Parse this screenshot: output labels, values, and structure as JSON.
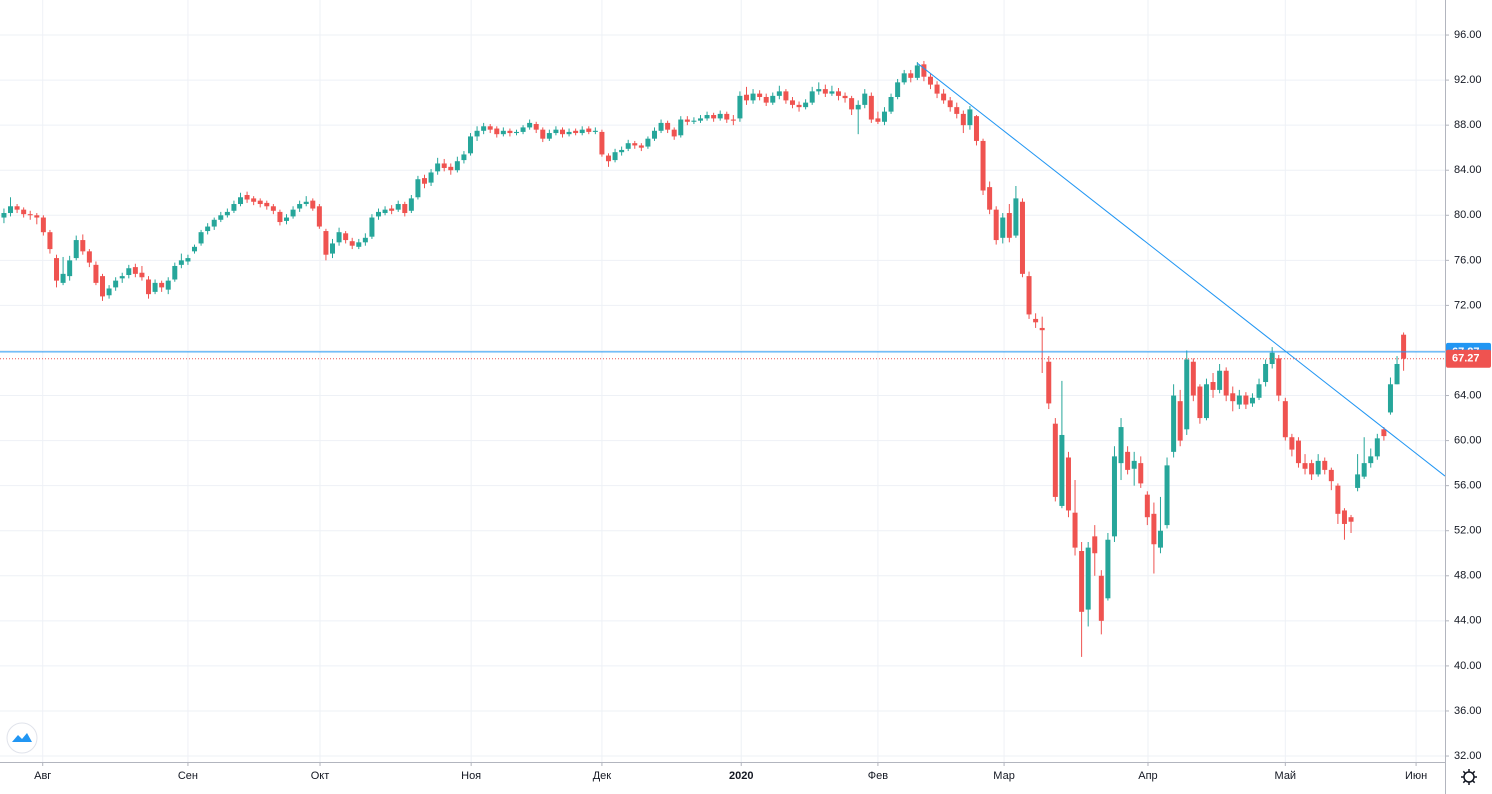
{
  "chart_data": {
    "type": "candlestick",
    "xlim": [
      -0.6,
      219.3
    ],
    "ylim": [
      31.47,
      99.11
    ],
    "grid": true,
    "xticks": [
      {
        "value": 5.9,
        "label": "Авг"
      },
      {
        "value": 28.0,
        "label": "Сен"
      },
      {
        "value": 48.1,
        "label": "Окт"
      },
      {
        "value": 71.1,
        "label": "Ноя"
      },
      {
        "value": 91.0,
        "label": "Дек"
      },
      {
        "value": 112.2,
        "label": "2020"
      },
      {
        "value": 133.0,
        "label": "Фев"
      },
      {
        "value": 152.2,
        "label": "Мар"
      },
      {
        "value": 174.1,
        "label": "Апр"
      },
      {
        "value": 195.0,
        "label": "Май"
      },
      {
        "value": 214.9,
        "label": "Июн"
      }
    ],
    "yticks": [
      {
        "value": 32,
        "label": "32.00"
      },
      {
        "value": 36,
        "label": "36.00"
      },
      {
        "value": 40,
        "label": "40.00"
      },
      {
        "value": 44,
        "label": "44.00"
      },
      {
        "value": 48,
        "label": "48.00"
      },
      {
        "value": 52,
        "label": "52.00"
      },
      {
        "value": 56,
        "label": "56.00"
      },
      {
        "value": 60,
        "label": "60.00"
      },
      {
        "value": 64,
        "label": "64.00"
      },
      {
        "value": 68,
        "label": "68.00"
      },
      {
        "value": 72,
        "label": "72.00"
      },
      {
        "value": 76,
        "label": "76.00"
      },
      {
        "value": 80,
        "label": "80.00"
      },
      {
        "value": 84,
        "label": "84.00"
      },
      {
        "value": 88,
        "label": "88.00"
      },
      {
        "value": 92,
        "label": "92.00"
      },
      {
        "value": 96,
        "label": "96.00"
      }
    ],
    "up_color": "#26a69a",
    "down_color": "#ef5350",
    "x": [
      0,
      1,
      2,
      3,
      4,
      5,
      6,
      7,
      8,
      9,
      10,
      11,
      12,
      13,
      14,
      15,
      16,
      17,
      18,
      19,
      20,
      21,
      22,
      23,
      24,
      25,
      26,
      27,
      28,
      29,
      30,
      31,
      32,
      33,
      34,
      35,
      36,
      37,
      38,
      39,
      40,
      41,
      42,
      43,
      44,
      45,
      46,
      47,
      48,
      49,
      50,
      51,
      52,
      53,
      54,
      55,
      56,
      57,
      58,
      59,
      60,
      61,
      62,
      63,
      64,
      65,
      66,
      67,
      68,
      69,
      70,
      71,
      72,
      73,
      74,
      75,
      76,
      77,
      78,
      79,
      80,
      81,
      82,
      83,
      84,
      85,
      86,
      87,
      88,
      89,
      90,
      91,
      92,
      93,
      94,
      95,
      96,
      97,
      98,
      99,
      100,
      101,
      102,
      103,
      104,
      105,
      106,
      107,
      108,
      109,
      110,
      111,
      112,
      113,
      114,
      115,
      116,
      117,
      118,
      119,
      120,
      121,
      122,
      123,
      124,
      125,
      126,
      127,
      128,
      129,
      130,
      131,
      132,
      133,
      134,
      135,
      136,
      137,
      138,
      139,
      140,
      141,
      142,
      143,
      144,
      145,
      146,
      147,
      148,
      149,
      150,
      151,
      152,
      153,
      154,
      155,
      156,
      157,
      158,
      159,
      160,
      161,
      162,
      163,
      164,
      165,
      166,
      167,
      168,
      169,
      170,
      171,
      172,
      173,
      174,
      175,
      176,
      177,
      178,
      179,
      180,
      181,
      182,
      183,
      184,
      185,
      186,
      187,
      188,
      189,
      190,
      191,
      192,
      193,
      194,
      195,
      196,
      197,
      198,
      199,
      200,
      201,
      202,
      203,
      204,
      205,
      206,
      207,
      208,
      209,
      210,
      211,
      212,
      213
    ],
    "open": [
      79.8,
      80.2,
      80.8,
      80.5,
      80.1,
      80.0,
      79.8,
      78.5,
      76.2,
      74.0,
      74.6,
      76.2,
      77.8,
      76.8,
      75.6,
      74.6,
      72.9,
      73.6,
      74.4,
      74.7,
      75.4,
      74.9,
      74.3,
      73.2,
      74.0,
      73.4,
      74.3,
      75.6,
      75.9,
      76.8,
      77.5,
      78.6,
      79.0,
      79.6,
      80.0,
      80.4,
      81.0,
      81.8,
      81.5,
      81.3,
      81.1,
      80.8,
      80.3,
      79.5,
      79.9,
      80.6,
      81.0,
      81.3,
      80.8,
      78.6,
      76.6,
      77.6,
      78.4,
      77.7,
      77.2,
      77.6,
      78.1,
      79.9,
      80.2,
      80.6,
      80.5,
      81.0,
      80.4,
      81.6,
      83.3,
      82.9,
      83.9,
      84.6,
      84.3,
      84.0,
      84.9,
      85.5,
      87.0,
      87.5,
      87.9,
      87.7,
      87.2,
      87.5,
      87.3,
      87.4,
      87.8,
      88.1,
      87.6,
      86.8,
      87.3,
      87.6,
      87.2,
      87.5,
      87.3,
      87.7,
      87.4,
      87.4,
      85.3,
      84.9,
      85.6,
      85.9,
      86.4,
      86.2,
      86.1,
      86.8,
      87.5,
      88.2,
      87.6,
      87.1,
      88.5,
      88.3,
      88.4,
      88.6,
      88.9,
      88.6,
      89.0,
      88.5,
      88.6,
      90.7,
      90.2,
      90.8,
      90.5,
      90.0,
      90.6,
      91.0,
      90.2,
      89.8,
      89.6,
      90.0,
      91.0,
      91.2,
      90.8,
      91.0,
      90.6,
      90.4,
      89.4,
      89.8,
      90.6,
      88.6,
      88.3,
      89.2,
      90.5,
      91.8,
      92.6,
      92.2,
      93.4,
      92.3,
      91.6,
      90.8,
      90.2,
      89.6,
      89.0,
      88.0,
      88.8,
      86.6,
      82.5,
      80.5,
      78.0,
      80.2,
      78.2,
      81.2,
      74.6,
      70.8,
      70.0,
      67.0,
      61.5,
      54.2,
      58.5,
      53.6,
      50.2,
      45.0,
      51.5,
      48.0,
      46.0,
      51.5,
      58.0,
      59.0,
      57.5,
      58.0,
      55.2,
      53.5,
      50.5,
      52.5,
      59.0,
      63.5,
      61.0,
      67.0,
      64.8,
      62.0,
      65.2,
      64.5,
      66.2,
      64.2,
      63.2,
      64.0,
      63.3,
      63.8,
      65.2,
      66.8,
      67.3,
      63.5,
      60.3,
      60.0,
      58.0,
      58.0,
      57.0,
      58.2,
      57.4,
      56.0,
      53.8,
      53.2,
      55.8,
      56.8,
      58.0,
      58.6,
      61.0,
      62.5,
      65.0,
      69.4
    ],
    "high": [
      80.6,
      81.6,
      81.0,
      80.7,
      80.4,
      80.2,
      80.0,
      78.7,
      76.5,
      76.3,
      76.4,
      78.2,
      78.3,
      77.0,
      75.9,
      74.8,
      73.8,
      74.5,
      74.9,
      75.6,
      75.7,
      75.5,
      74.6,
      74.3,
      74.2,
      74.5,
      75.8,
      76.6,
      76.5,
      77.4,
      78.7,
      79.3,
      79.8,
      80.3,
      80.6,
      81.3,
      82.0,
      82.1,
      81.7,
      81.5,
      81.3,
      81.0,
      80.5,
      80.1,
      80.8,
      81.3,
      81.7,
      81.5,
      81.0,
      78.8,
      77.9,
      78.9,
      78.6,
      78.0,
      77.9,
      78.4,
      80.1,
      80.6,
      80.8,
      80.9,
      81.3,
      81.2,
      81.8,
      83.5,
      83.6,
      84.1,
      85.1,
      85.0,
      84.6,
      85.2,
      85.7,
      87.3,
      87.9,
      88.2,
      88.1,
      87.9,
      87.8,
      87.7,
      87.6,
      88.0,
      88.5,
      88.3,
      87.8,
      87.6,
      87.9,
      87.8,
      87.7,
      87.7,
      87.9,
      87.9,
      87.8,
      87.6,
      85.5,
      85.9,
      86.1,
      86.7,
      86.6,
      86.4,
      87.0,
      87.8,
      88.5,
      88.4,
      87.8,
      88.8,
      88.8,
      88.7,
      88.9,
      89.2,
      89.1,
      89.3,
      89.2,
      88.9,
      91.0,
      91.4,
      91.2,
      91.1,
      90.8,
      90.9,
      91.5,
      91.2,
      90.5,
      90.1,
      90.3,
      91.4,
      91.8,
      91.6,
      91.5,
      91.3,
      90.9,
      90.6,
      90.2,
      91.2,
      90.9,
      89.2,
      89.6,
      90.8,
      92.1,
      92.9,
      92.9,
      93.6,
      93.7,
      92.6,
      91.9,
      91.2,
      90.5,
      90.0,
      89.3,
      89.7,
      88.9,
      86.8,
      83.0,
      80.8,
      80.2,
      81.0,
      82.6,
      81.5,
      75.0,
      71.3,
      71.0,
      67.5,
      62.0,
      65.3,
      59.0,
      56.5,
      51.0,
      51.0,
      52.5,
      48.5,
      51.8,
      59.5,
      62.0,
      59.5,
      59.0,
      58.6,
      55.5,
      54.5,
      55.0,
      58.5,
      65.0,
      64.5,
      68.0,
      67.3,
      65.0,
      65.5,
      66.0,
      66.8,
      66.5,
      64.8,
      64.5,
      64.3,
      64.2,
      65.5,
      67.2,
      68.3,
      67.6,
      63.8,
      60.6,
      60.3,
      58.8,
      58.3,
      58.8,
      58.5,
      57.6,
      56.2,
      54.0,
      53.4,
      58.8,
      60.3,
      59.3,
      60.6,
      61.2,
      65.6,
      67.5,
      69.6
    ],
    "low": [
      79.3,
      79.9,
      80.2,
      79.8,
      79.6,
      79.2,
      78.2,
      76.6,
      73.6,
      73.8,
      74.2,
      76.0,
      76.5,
      75.4,
      73.8,
      72.4,
      72.6,
      73.3,
      74.0,
      74.4,
      74.5,
      74.2,
      72.6,
      73.0,
      73.2,
      73.0,
      74.1,
      75.3,
      75.6,
      76.6,
      77.3,
      78.3,
      78.7,
      79.4,
      79.8,
      80.2,
      80.8,
      81.1,
      80.9,
      80.7,
      80.5,
      80.1,
      79.1,
      79.2,
      79.7,
      80.3,
      80.8,
      80.4,
      78.8,
      76.0,
      76.2,
      77.3,
      77.5,
      77.0,
      77.0,
      77.3,
      77.9,
      79.6,
      80.0,
      80.1,
      80.3,
      79.9,
      80.2,
      81.4,
      82.4,
      82.6,
      83.6,
      83.9,
      83.6,
      83.8,
      84.6,
      85.3,
      86.6,
      87.2,
      87.3,
      86.9,
      87.0,
      87.0,
      87.1,
      87.2,
      87.6,
      87.3,
      86.5,
      86.6,
      87.1,
      86.9,
      87.0,
      87.1,
      87.1,
      87.2,
      87.2,
      85.2,
      84.3,
      84.7,
      85.3,
      85.7,
      85.9,
      85.7,
      85.9,
      86.6,
      87.3,
      87.3,
      86.7,
      86.9,
      88.0,
      88.1,
      88.2,
      88.4,
      88.3,
      88.4,
      88.2,
      88.0,
      88.3,
      89.8,
      89.9,
      90.2,
      89.7,
      89.8,
      90.3,
      89.9,
      89.5,
      89.2,
      89.4,
      89.8,
      90.7,
      90.5,
      90.6,
      90.2,
      90.0,
      88.9,
      87.2,
      89.5,
      88.2,
      88.1,
      88.0,
      89.0,
      90.3,
      91.6,
      91.8,
      92.0,
      91.9,
      91.2,
      90.4,
      89.9,
      89.2,
      88.6,
      87.3,
      87.6,
      86.2,
      81.8,
      80.1,
      77.4,
      77.5,
      77.6,
      78.0,
      74.5,
      70.8,
      70.0,
      66.0,
      62.8,
      54.6,
      54.0,
      53.2,
      49.8,
      40.8,
      43.5,
      48.0,
      42.8,
      45.8,
      51.0,
      56.5,
      57.0,
      56.0,
      55.8,
      52.5,
      48.2,
      50.0,
      52.2,
      58.5,
      59.5,
      60.5,
      63.5,
      61.5,
      61.8,
      63.8,
      64.2,
      63.5,
      62.6,
      62.8,
      62.8,
      63.0,
      63.6,
      64.8,
      66.4,
      63.5,
      60.0,
      58.6,
      57.6,
      57.0,
      56.5,
      56.8,
      57.0,
      55.6,
      52.6,
      51.2,
      51.8,
      55.5,
      56.6,
      57.6,
      58.3,
      60.0,
      62.3,
      65.0,
      66.2
    ],
    "close": [
      80.2,
      80.8,
      80.5,
      80.1,
      80.0,
      79.8,
      78.5,
      77.0,
      74.2,
      74.8,
      76.0,
      77.8,
      76.8,
      75.8,
      74.0,
      72.8,
      73.5,
      74.2,
      74.6,
      75.3,
      74.8,
      74.5,
      73.0,
      74.0,
      73.6,
      74.2,
      75.5,
      76.0,
      76.2,
      77.2,
      78.5,
      79.0,
      79.6,
      80.0,
      80.3,
      81.0,
      81.6,
      81.4,
      81.2,
      81.0,
      80.8,
      80.4,
      79.4,
      79.8,
      80.5,
      81.0,
      81.2,
      80.6,
      79.0,
      76.5,
      77.5,
      78.5,
      77.8,
      77.3,
      77.6,
      78.0,
      79.8,
      80.3,
      80.5,
      80.4,
      81.0,
      80.2,
      81.5,
      83.2,
      82.8,
      83.8,
      84.6,
      84.2,
      84.0,
      84.8,
      85.4,
      87.0,
      87.5,
      87.9,
      87.6,
      87.2,
      87.5,
      87.3,
      87.4,
      87.8,
      88.2,
      87.6,
      86.8,
      87.3,
      87.6,
      87.2,
      87.4,
      87.3,
      87.6,
      87.4,
      87.5,
      85.4,
      84.8,
      85.6,
      85.8,
      86.4,
      86.2,
      86.0,
      86.8,
      87.5,
      88.2,
      87.6,
      87.0,
      88.5,
      88.3,
      88.4,
      88.6,
      88.9,
      88.6,
      89.0,
      88.5,
      88.4,
      90.6,
      90.2,
      90.8,
      90.5,
      90.0,
      90.6,
      91.0,
      90.2,
      89.8,
      89.6,
      90.0,
      91.0,
      91.2,
      90.8,
      91.0,
      90.6,
      90.4,
      89.4,
      89.8,
      90.8,
      88.5,
      88.3,
      89.2,
      90.5,
      91.8,
      92.6,
      92.2,
      93.3,
      92.3,
      91.6,
      90.8,
      90.2,
      89.6,
      89.0,
      88.0,
      89.4,
      86.6,
      82.2,
      80.5,
      77.8,
      79.8,
      78.0,
      81.5,
      74.8,
      71.2,
      70.5,
      69.8,
      63.3,
      55.0,
      60.5,
      53.8,
      50.5,
      44.8,
      50.5,
      50.0,
      44.0,
      51.2,
      58.6,
      61.2,
      57.4,
      58.2,
      56.2,
      53.2,
      50.8,
      52.0,
      57.8,
      64.0,
      60.0,
      67.2,
      64.0,
      62.0,
      65.0,
      64.5,
      66.2,
      64.0,
      63.5,
      64.0,
      63.2,
      63.8,
      65.0,
      66.8,
      67.8,
      64.0,
      60.3,
      59.2,
      58.0,
      57.5,
      57.0,
      58.2,
      57.4,
      56.4,
      53.5,
      52.6,
      52.8,
      57.0,
      58.0,
      58.6,
      60.2,
      60.4,
      65.0,
      66.8,
      67.27
    ],
    "trendline": {
      "x": [
        139,
        219.3
      ],
      "y": [
        93.5,
        56.85
      ],
      "color": "#2196f3"
    },
    "hline": {
      "value": 67.87,
      "color": "#2196f3"
    },
    "price_line": {
      "value": 67.27,
      "color": "#ef5350"
    }
  }
}
